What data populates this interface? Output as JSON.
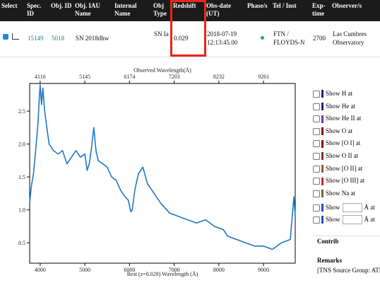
{
  "table": {
    "headers": [
      "Select",
      "Spec. ID",
      "Obj. ID",
      "Obj. IAU Name",
      "Internal Name",
      "Obj Type",
      "Redshift",
      "Obs-date (UT)",
      "Phase/s",
      "Tel / Inst",
      "Exp-time",
      "Observer/s"
    ],
    "row": {
      "spec_id": "15149",
      "obj_id": "5018",
      "iau_name": "SN 2018dhw",
      "obj_type": "SN Ia",
      "redshift": "0.029",
      "obs_date": "2018-07-19 12:13:45.00",
      "tel_inst": "FTN / FLOYDS-N",
      "exp_time": "2700",
      "observers": "Las Cumbres Observatory"
    }
  },
  "spectrum": {
    "type": "line",
    "top_label": "Observed Wavelength(Å)",
    "x_label": "Rest (z=0.029) Wavelength (Å)",
    "color": "#1f77c4",
    "xlim": [
      3765,
      9710
    ],
    "xticks": [
      4000,
      5000,
      6000,
      7000,
      8000,
      9000
    ],
    "top_xlim": [
      3874,
      9992
    ],
    "top_xticks": [
      4116,
      5145,
      6174,
      7203,
      8232,
      9261
    ],
    "ylim": [
      0.19,
      2.92
    ],
    "yticks": [
      2.5,
      {
        "value": 2,
        "label": "2.0"
      },
      1.5,
      {
        "value": 1,
        "label": "1.0"
      },
      0.5
    ],
    "x": [
      3765,
      3800,
      3850,
      3900,
      3950,
      3980,
      4000,
      4030,
      4060,
      4100,
      4150,
      4200,
      4300,
      4400,
      4500,
      4600,
      4700,
      4800,
      4900,
      5000,
      5050,
      5100,
      5150,
      5200,
      5250,
      5300,
      5400,
      5500,
      5600,
      5700,
      5800,
      5900,
      5970,
      6030,
      6060,
      6120,
      6200,
      6300,
      6400,
      6500,
      6700,
      6900,
      7100,
      7300,
      7500,
      7700,
      7900,
      8100,
      8200,
      8400,
      8600,
      8800,
      9000,
      9200,
      9400,
      9600,
      9680,
      9710
    ],
    "values": [
      1.1,
      1.35,
      1.55,
      1.9,
      2.3,
      2.7,
      2.9,
      2.6,
      2.85,
      2.5,
      2.25,
      2.0,
      1.9,
      1.85,
      1.9,
      1.7,
      1.8,
      1.9,
      1.8,
      1.85,
      1.6,
      1.7,
      1.95,
      2.25,
      1.9,
      1.75,
      1.7,
      1.65,
      1.5,
      1.45,
      1.3,
      1.2,
      1.15,
      0.97,
      1.0,
      1.3,
      1.55,
      1.65,
      1.4,
      1.3,
      1.1,
      0.95,
      0.9,
      0.85,
      0.8,
      0.85,
      0.75,
      0.7,
      0.6,
      0.55,
      0.5,
      0.45,
      0.45,
      0.4,
      0.5,
      0.55,
      1.2,
      0.9
    ]
  },
  "line_options": [
    {
      "label": "Show H at",
      "color": "#1a237e"
    },
    {
      "label": "Show He at",
      "color": "#1a237e"
    },
    {
      "label": "Show He II at",
      "color": "#7b2fbf"
    },
    {
      "label": "Show O at",
      "color": "#8b0000"
    },
    {
      "label": "Show [O I] at",
      "color": "#8b0000"
    },
    {
      "label": "Show O II at",
      "color": "#7a3b10"
    },
    {
      "label": "Show [O II] at",
      "color": "#a0522d"
    },
    {
      "label": "Show [O III] at",
      "color": "#c62828"
    },
    {
      "label": "Show Na at",
      "color": "#6b6b1e"
    }
  ],
  "custom_lines": [
    {
      "before": "Show",
      "after": "Å at",
      "color": "#1f4fbf"
    },
    {
      "before": "Show",
      "after": "Å at",
      "color": "#1f4fbf"
    }
  ],
  "contrib": "Contrib",
  "remarks": {
    "title": "Remarks",
    "text": "[TNS Source Group: ATL"
  }
}
